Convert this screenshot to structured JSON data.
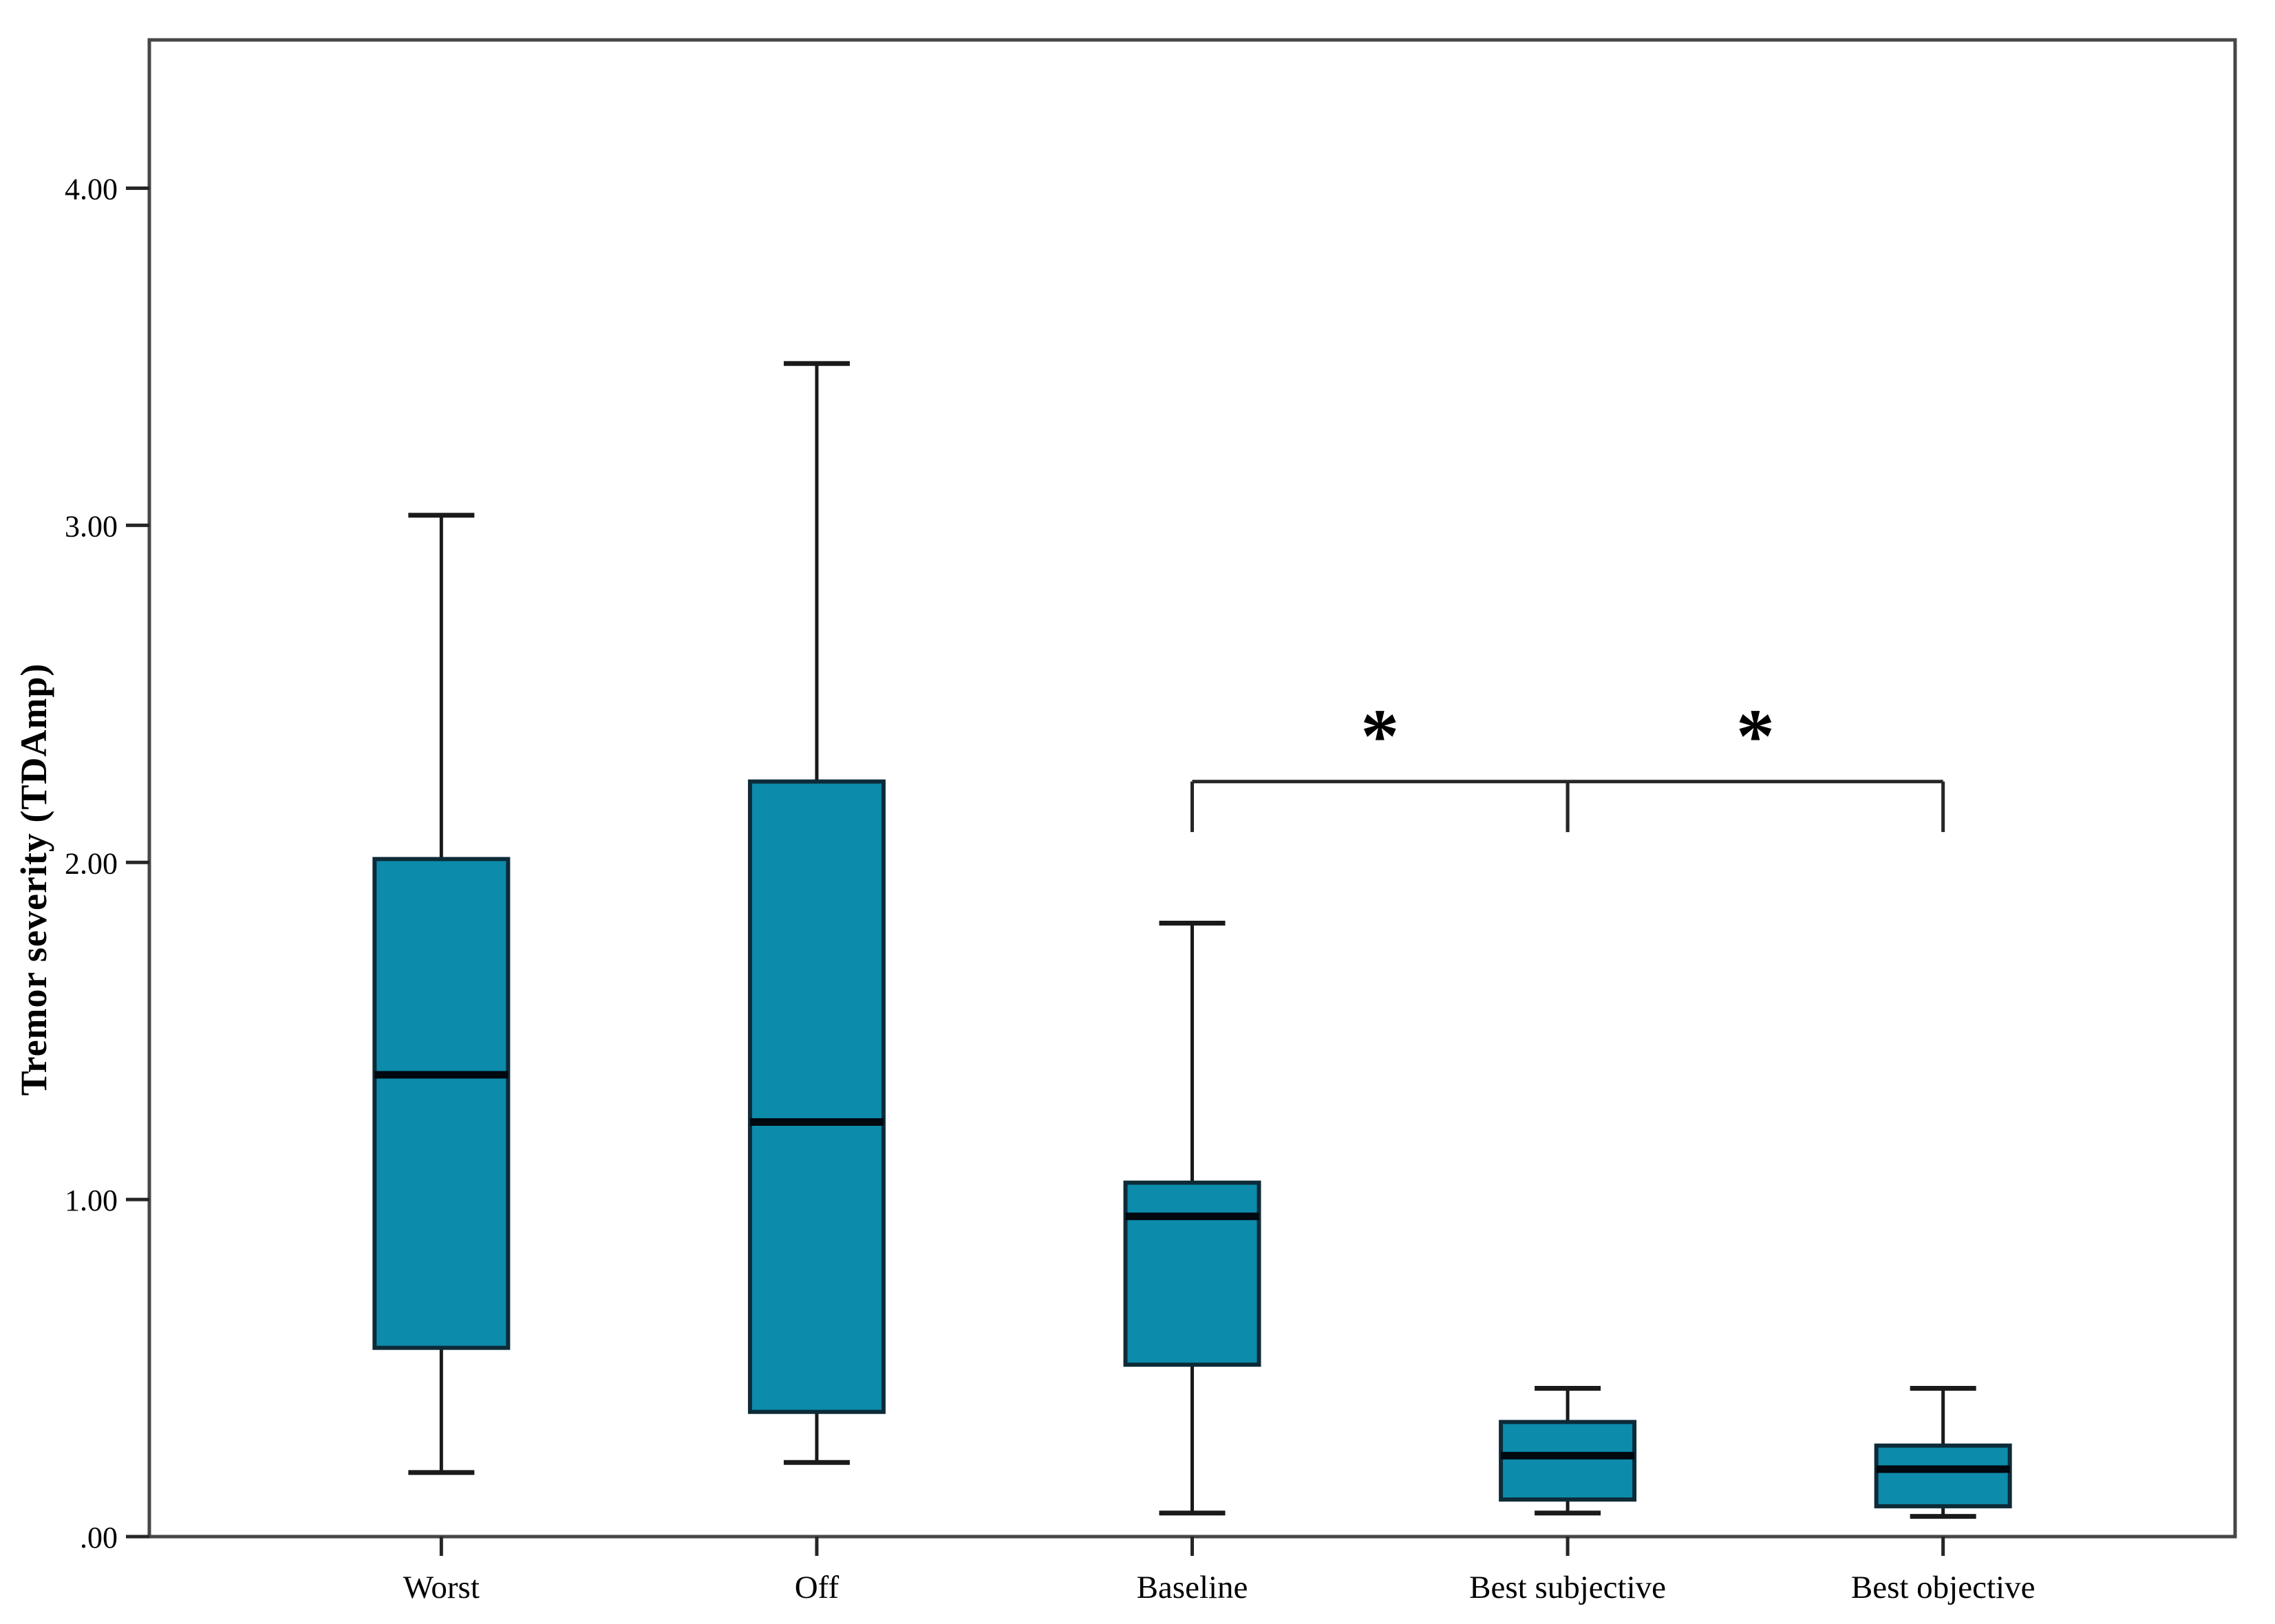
{
  "figure": {
    "background": "#ffffff",
    "frame_color": "#474747",
    "box_fill": "#0d8bab",
    "box_border": "#0d2b38",
    "median_color": "#010810",
    "whisker_color": "#1a1a1a",
    "bracket_color": "#262626",
    "text_color": "#000000"
  },
  "chart_data": {
    "type": "boxplot",
    "title": "",
    "xlabel": "",
    "ylabel": "Tremor severity (TDAmp)",
    "ylim": [
      0,
      4.44
    ],
    "grid": false,
    "legend": "none",
    "y_ticks": [
      {
        "value": 0,
        "label": ".00"
      },
      {
        "value": 1.0,
        "label": "1.00"
      },
      {
        "value": 2.0,
        "label": "2.00"
      },
      {
        "value": 3.0,
        "label": "3.00"
      },
      {
        "value": 4.0,
        "label": "4.00"
      }
    ],
    "categories": [
      "Worst",
      "Off",
      "Baseline",
      "Best subjective",
      "Best objective"
    ],
    "series": [
      {
        "category": "Worst",
        "whisker_low": 0.19,
        "q1": 0.56,
        "median": 1.37,
        "q3": 2.01,
        "whisker_high": 3.03
      },
      {
        "category": "Off",
        "whisker_low": 0.22,
        "q1": 0.37,
        "median": 1.23,
        "q3": 2.24,
        "whisker_high": 3.48
      },
      {
        "category": "Baseline",
        "whisker_low": 0.07,
        "q1": 0.51,
        "median": 0.95,
        "q3": 1.05,
        "whisker_high": 1.82
      },
      {
        "category": "Best subjective",
        "whisker_low": 0.07,
        "q1": 0.11,
        "median": 0.24,
        "q3": 0.34,
        "whisker_high": 0.44
      },
      {
        "category": "Best objective",
        "whisker_low": 0.06,
        "q1": 0.09,
        "median": 0.2,
        "q3": 0.27,
        "whisker_high": 0.44
      }
    ],
    "significance_brackets": [
      {
        "from": "Baseline",
        "to": "Best subjective",
        "label": "*",
        "y": 2.24,
        "tick_drop": 0.15
      },
      {
        "from": "Best subjective",
        "to": "Best objective",
        "label": "*",
        "y": 2.24,
        "tick_drop": 0.15
      }
    ]
  }
}
